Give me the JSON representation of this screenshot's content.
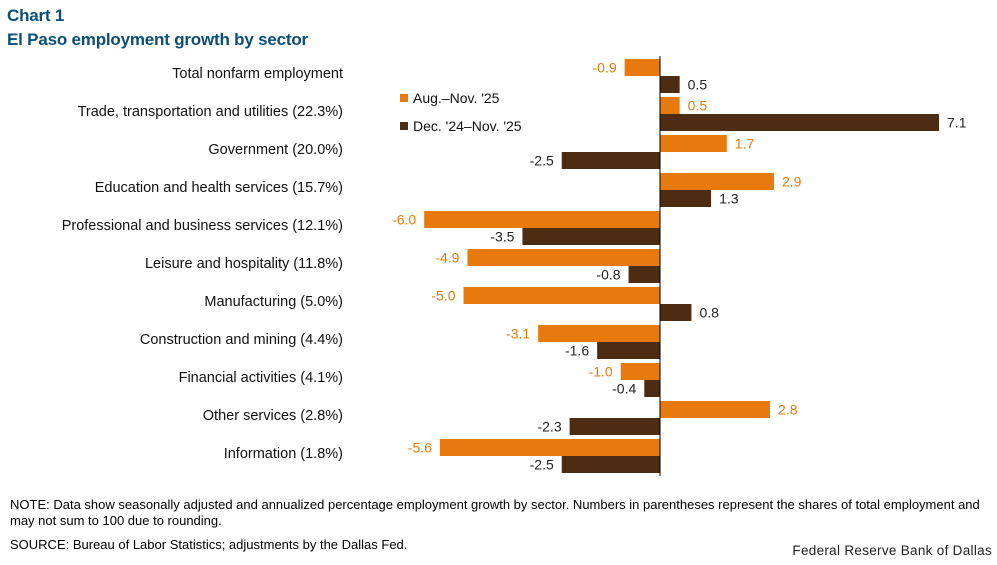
{
  "chart_label": "Chart 1",
  "chart_data": {
    "type": "bar",
    "orientation": "horizontal",
    "title": "El Paso employment growth by sector",
    "categories": [
      "Total nonfarm employment",
      "Trade, transportation and utilities (22.3%)",
      "Government (20.0%)",
      "Education and health services (15.7%)",
      "Professional and business services (12.1%)",
      "Leisure and hospitality (11.8%)",
      "Manufacturing (5.0%)",
      "Construction and mining (4.4%)",
      "Financial activities (4.1%)",
      "Other services (2.8%)",
      "Information (1.8%)"
    ],
    "series": [
      {
        "name": "Aug.–Nov. '25",
        "color": "#e8790d",
        "values": [
          -0.9,
          0.5,
          1.7,
          2.9,
          -6.0,
          -4.9,
          -5.0,
          -3.1,
          -1.0,
          2.8,
          -5.6
        ],
        "labels": [
          "-0.9",
          "0.5",
          "1.7",
          "2.9",
          "-6.0",
          "-4.9",
          "-5.0",
          "-3.1",
          "-1.0",
          "2.8",
          "-5.6"
        ]
      },
      {
        "name": "Dec. '24–Nov. '25",
        "color": "#4d2c14",
        "values": [
          0.5,
          7.1,
          -2.5,
          1.3,
          -3.5,
          -0.8,
          0.8,
          -1.6,
          -0.4,
          -2.3,
          -2.5
        ],
        "labels": [
          "0.5",
          "7.1",
          "-2.5",
          "1.3",
          "-3.5",
          "-0.8",
          "0.8",
          "-1.6",
          "-0.4",
          "-2.3",
          "-2.5"
        ]
      }
    ],
    "xlim": [
      -6.0,
      7.1
    ],
    "legend_position": "top-center",
    "grid": false
  },
  "note": "NOTE: Data show seasonally adjusted and annualized percentage employment growth by sector. Numbers in parentheses represent the shares of total employment and may not sum to 100 due to rounding.",
  "source": "SOURCE: Bureau of Labor Statistics; adjustments by the Dallas Fed.",
  "credit": "Federal Reserve Bank of Dallas"
}
